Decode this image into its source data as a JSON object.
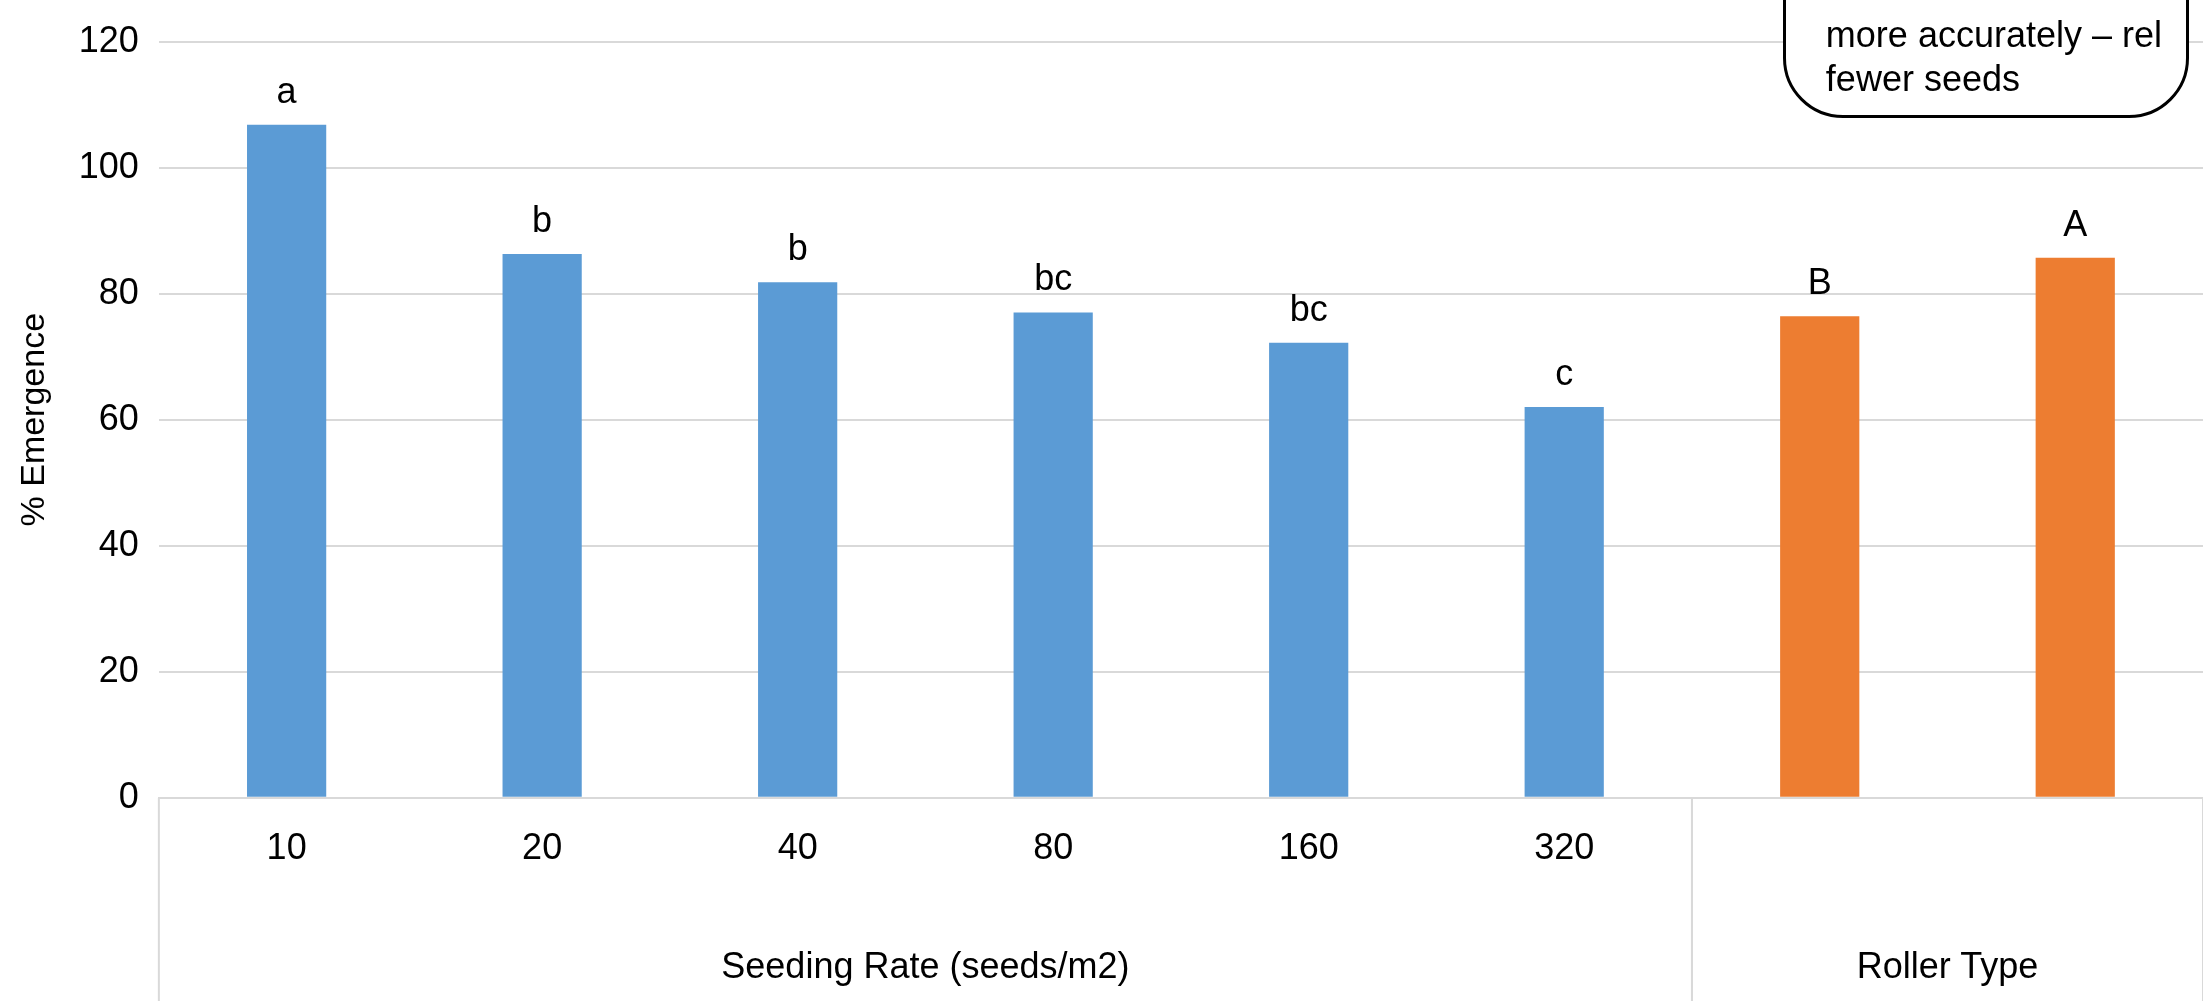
{
  "chart_data": {
    "type": "bar",
    "ylabel": "% Emergence",
    "categories": [
      "10",
      "20",
      "40",
      "80",
      "160",
      "320",
      null,
      null
    ],
    "values": [
      106.8,
      86.3,
      81.8,
      77.0,
      72.2,
      62.0,
      76.4,
      85.7
    ],
    "colors": [
      "#5b9bd5",
      "#5b9bd5",
      "#5b9bd5",
      "#5b9bd5",
      "#5b9bd5",
      "#5b9bd5",
      "#ed7d31",
      "#ed7d31"
    ],
    "value_labels": [
      "a",
      "b",
      "b",
      "bc",
      "bc",
      "c",
      "B",
      "A"
    ],
    "ylim": [
      0,
      120
    ],
    "yticks": [
      0,
      20,
      40,
      60,
      80,
      100,
      120
    ],
    "grid": "y",
    "annotations": [
      "Seeding Rate (seeds/m2)",
      "Roller Type",
      "more accurately – rel\nfewer seeds"
    ]
  }
}
